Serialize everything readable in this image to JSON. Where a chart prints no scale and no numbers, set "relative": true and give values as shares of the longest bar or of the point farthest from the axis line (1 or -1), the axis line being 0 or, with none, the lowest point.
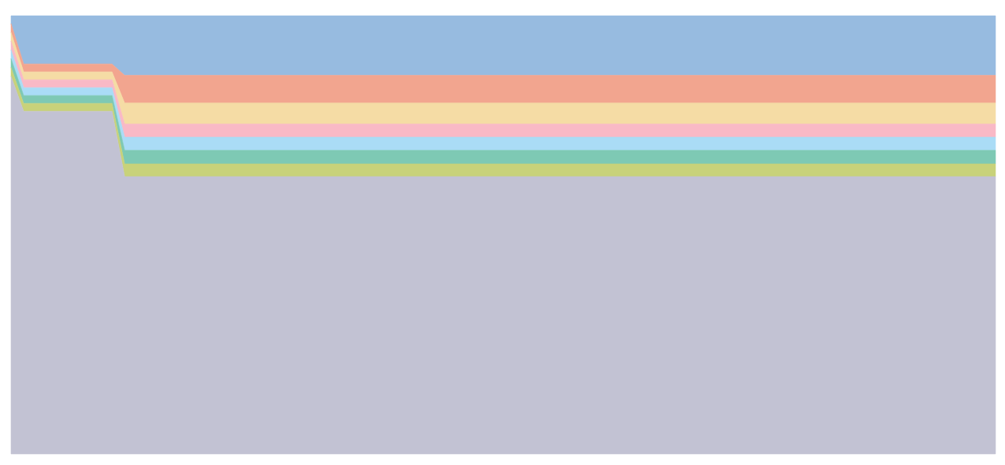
{
  "chart_data": {
    "type": "area",
    "stacked": true,
    "relative": true,
    "categories": [
      null,
      null,
      null,
      null,
      null,
      null,
      null,
      null,
      null,
      null,
      null,
      null,
      null,
      null,
      null,
      null,
      null,
      null,
      null,
      null,
      null,
      null,
      null,
      null,
      null,
      null,
      null,
      null,
      null,
      null,
      null,
      null,
      null,
      null,
      null,
      null,
      null,
      null,
      null,
      null,
      null,
      null,
      null,
      null,
      null,
      null,
      null,
      null,
      null,
      null,
      null,
      null,
      null,
      null,
      null,
      null,
      null,
      null,
      null,
      null,
      null,
      null,
      null,
      null,
      null,
      null,
      null,
      null,
      null,
      null,
      null,
      null,
      null,
      null,
      null,
      null,
      null,
      null,
      null
    ],
    "series": [
      {
        "color": "#c2c2d3",
        "values": [
          0.862,
          0.782,
          0.782,
          0.782,
          0.782,
          0.782,
          0.782,
          0.782,
          0.782,
          0.633,
          0.633,
          0.633,
          0.633,
          0.633,
          0.633,
          0.633,
          0.633,
          0.633,
          0.633,
          0.633,
          0.633,
          0.633,
          0.633,
          0.633,
          0.633,
          0.633,
          0.633,
          0.633,
          0.633,
          0.633,
          0.633,
          0.633,
          0.633,
          0.633,
          0.633,
          0.633,
          0.633,
          0.633,
          0.633,
          0.633,
          0.633,
          0.633,
          0.633,
          0.633,
          0.633,
          0.633,
          0.633,
          0.633,
          0.633,
          0.633,
          0.633,
          0.633,
          0.633,
          0.633,
          0.633,
          0.633,
          0.633,
          0.633,
          0.633,
          0.633,
          0.633,
          0.633,
          0.633,
          0.633,
          0.633,
          0.633,
          0.633,
          0.633,
          0.633,
          0.633,
          0.633,
          0.633,
          0.633,
          0.633,
          0.633,
          0.633,
          0.633,
          0.633,
          0.633
        ]
      },
      {
        "color": "#c8d27a",
        "values": [
          0.02,
          0.018,
          0.018,
          0.018,
          0.018,
          0.018,
          0.018,
          0.018,
          0.018,
          0.029,
          0.029,
          0.029,
          0.029,
          0.029,
          0.029,
          0.029,
          0.029,
          0.029,
          0.029,
          0.029,
          0.029,
          0.029,
          0.029,
          0.029,
          0.029,
          0.029,
          0.029,
          0.029,
          0.029,
          0.029,
          0.029,
          0.029,
          0.029,
          0.029,
          0.029,
          0.029,
          0.029,
          0.029,
          0.029,
          0.029,
          0.029,
          0.029,
          0.029,
          0.029,
          0.029,
          0.029,
          0.029,
          0.029,
          0.029,
          0.029,
          0.029,
          0.029,
          0.029,
          0.029,
          0.029,
          0.029,
          0.029,
          0.029,
          0.029,
          0.029,
          0.029,
          0.029,
          0.029,
          0.029,
          0.029,
          0.029,
          0.029,
          0.029,
          0.029,
          0.029,
          0.029,
          0.029,
          0.029,
          0.029,
          0.029,
          0.029,
          0.029,
          0.029,
          0.029
        ]
      },
      {
        "color": "#7ec9b4",
        "values": [
          0.02,
          0.018,
          0.018,
          0.018,
          0.018,
          0.018,
          0.018,
          0.018,
          0.018,
          0.031,
          0.031,
          0.031,
          0.031,
          0.031,
          0.031,
          0.031,
          0.031,
          0.031,
          0.031,
          0.031,
          0.031,
          0.031,
          0.031,
          0.031,
          0.031,
          0.031,
          0.031,
          0.031,
          0.031,
          0.031,
          0.031,
          0.031,
          0.031,
          0.031,
          0.031,
          0.031,
          0.031,
          0.031,
          0.031,
          0.031,
          0.031,
          0.031,
          0.031,
          0.031,
          0.031,
          0.031,
          0.031,
          0.031,
          0.031,
          0.031,
          0.031,
          0.031,
          0.031,
          0.031,
          0.031,
          0.031,
          0.031,
          0.031,
          0.031,
          0.031,
          0.031,
          0.031,
          0.031,
          0.031,
          0.031,
          0.031,
          0.031,
          0.031,
          0.031,
          0.031,
          0.031,
          0.031,
          0.031,
          0.031,
          0.031,
          0.031,
          0.031,
          0.031,
          0.031
        ]
      },
      {
        "color": "#aadcf6",
        "values": [
          0.02,
          0.018,
          0.018,
          0.018,
          0.018,
          0.018,
          0.018,
          0.018,
          0.018,
          0.03,
          0.03,
          0.03,
          0.03,
          0.03,
          0.03,
          0.03,
          0.03,
          0.03,
          0.03,
          0.03,
          0.03,
          0.03,
          0.03,
          0.03,
          0.03,
          0.03,
          0.03,
          0.03,
          0.03,
          0.03,
          0.03,
          0.03,
          0.03,
          0.03,
          0.03,
          0.03,
          0.03,
          0.03,
          0.03,
          0.03,
          0.03,
          0.03,
          0.03,
          0.03,
          0.03,
          0.03,
          0.03,
          0.03,
          0.03,
          0.03,
          0.03,
          0.03,
          0.03,
          0.03,
          0.03,
          0.03,
          0.03,
          0.03,
          0.03,
          0.03,
          0.03,
          0.03,
          0.03,
          0.03,
          0.03,
          0.03,
          0.03,
          0.03,
          0.03,
          0.03,
          0.03,
          0.03,
          0.03,
          0.03,
          0.03,
          0.03,
          0.03,
          0.03,
          0.03
        ]
      },
      {
        "color": "#f9b9c6",
        "values": [
          0.02,
          0.018,
          0.018,
          0.018,
          0.018,
          0.018,
          0.018,
          0.018,
          0.018,
          0.03,
          0.03,
          0.03,
          0.03,
          0.03,
          0.03,
          0.03,
          0.03,
          0.03,
          0.03,
          0.03,
          0.03,
          0.03,
          0.03,
          0.03,
          0.03,
          0.03,
          0.03,
          0.03,
          0.03,
          0.03,
          0.03,
          0.03,
          0.03,
          0.03,
          0.03,
          0.03,
          0.03,
          0.03,
          0.03,
          0.03,
          0.03,
          0.03,
          0.03,
          0.03,
          0.03,
          0.03,
          0.03,
          0.03,
          0.03,
          0.03,
          0.03,
          0.03,
          0.03,
          0.03,
          0.03,
          0.03,
          0.03,
          0.03,
          0.03,
          0.03,
          0.03,
          0.03,
          0.03,
          0.03,
          0.03,
          0.03,
          0.03,
          0.03,
          0.03,
          0.03,
          0.03,
          0.03,
          0.03,
          0.03,
          0.03,
          0.03,
          0.03,
          0.03,
          0.03
        ]
      },
      {
        "color": "#f5dca5",
        "values": [
          0.02,
          0.018,
          0.018,
          0.018,
          0.018,
          0.018,
          0.018,
          0.018,
          0.018,
          0.048,
          0.048,
          0.048,
          0.048,
          0.048,
          0.048,
          0.048,
          0.048,
          0.048,
          0.048,
          0.048,
          0.048,
          0.048,
          0.048,
          0.048,
          0.048,
          0.048,
          0.048,
          0.048,
          0.048,
          0.048,
          0.048,
          0.048,
          0.048,
          0.048,
          0.048,
          0.048,
          0.048,
          0.048,
          0.048,
          0.048,
          0.048,
          0.048,
          0.048,
          0.048,
          0.048,
          0.048,
          0.048,
          0.048,
          0.048,
          0.048,
          0.048,
          0.048,
          0.048,
          0.048,
          0.048,
          0.048,
          0.048,
          0.048,
          0.048,
          0.048,
          0.048,
          0.048,
          0.048,
          0.048,
          0.048,
          0.048,
          0.048,
          0.048,
          0.048,
          0.048,
          0.048,
          0.048,
          0.048,
          0.048,
          0.048,
          0.048,
          0.048,
          0.048,
          0.048
        ]
      },
      {
        "color": "#f2a58f",
        "values": [
          0.02,
          0.018,
          0.018,
          0.018,
          0.018,
          0.018,
          0.018,
          0.018,
          0.018,
          0.063,
          0.063,
          0.063,
          0.063,
          0.063,
          0.063,
          0.063,
          0.063,
          0.063,
          0.063,
          0.063,
          0.063,
          0.063,
          0.063,
          0.063,
          0.063,
          0.063,
          0.063,
          0.063,
          0.063,
          0.063,
          0.063,
          0.063,
          0.063,
          0.063,
          0.063,
          0.063,
          0.063,
          0.063,
          0.063,
          0.063,
          0.063,
          0.063,
          0.063,
          0.063,
          0.063,
          0.063,
          0.063,
          0.063,
          0.063,
          0.063,
          0.063,
          0.063,
          0.063,
          0.063,
          0.063,
          0.063,
          0.063,
          0.063,
          0.063,
          0.063,
          0.063,
          0.063,
          0.063,
          0.063,
          0.063,
          0.063,
          0.063,
          0.063,
          0.063,
          0.063,
          0.063,
          0.063,
          0.063,
          0.063,
          0.063,
          0.063,
          0.063,
          0.063,
          0.063
        ]
      },
      {
        "color": "#97bbe0",
        "values": [
          0.018,
          0.11,
          0.11,
          0.11,
          0.11,
          0.11,
          0.11,
          0.11,
          0.11,
          0.136,
          0.136,
          0.136,
          0.136,
          0.136,
          0.136,
          0.136,
          0.136,
          0.136,
          0.136,
          0.136,
          0.136,
          0.136,
          0.136,
          0.136,
          0.136,
          0.136,
          0.136,
          0.136,
          0.136,
          0.136,
          0.136,
          0.136,
          0.136,
          0.136,
          0.136,
          0.136,
          0.136,
          0.136,
          0.136,
          0.136,
          0.136,
          0.136,
          0.136,
          0.136,
          0.136,
          0.136,
          0.136,
          0.136,
          0.136,
          0.136,
          0.136,
          0.136,
          0.136,
          0.136,
          0.136,
          0.136,
          0.136,
          0.136,
          0.136,
          0.136,
          0.136,
          0.136,
          0.136,
          0.136,
          0.136,
          0.136,
          0.136,
          0.136,
          0.136,
          0.136,
          0.136,
          0.136,
          0.136,
          0.136,
          0.136,
          0.136,
          0.136,
          0.136,
          0.136
        ]
      }
    ]
  }
}
